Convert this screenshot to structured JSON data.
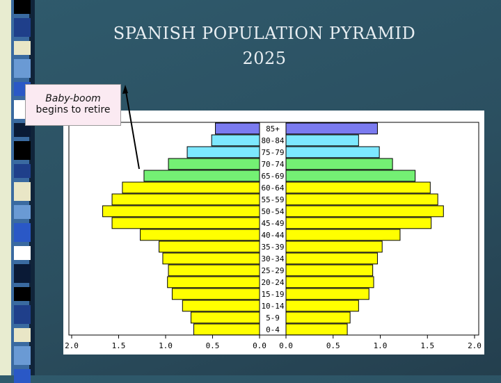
{
  "slide": {
    "title_line1": "SPANISH POPULATION PYRAMID",
    "title_line2": "2025",
    "callout_line1": "Baby-boom",
    "callout_line2": "begins to retire"
  },
  "colors": {
    "old_age": "#7b7bf0",
    "senior": "#7de8ff",
    "pre_retire": "#74f074",
    "working_age": "#ffff00",
    "outline": "#000000"
  },
  "chart_data": {
    "type": "bar",
    "orientation": "horizontal-pyramid",
    "categories": [
      "85+",
      "80-84",
      "75-79",
      "70-74",
      "65-69",
      "60-64",
      "55-59",
      "50-54",
      "45-49",
      "40-44",
      "35-39",
      "30-34",
      "25-29",
      "20-24",
      "15-19",
      "10-14",
      "5-9",
      "0-4"
    ],
    "series": [
      {
        "side": "left",
        "values": [
          0.47,
          0.51,
          0.77,
          0.97,
          1.23,
          1.46,
          1.57,
          1.67,
          1.57,
          1.27,
          1.07,
          1.03,
          0.97,
          0.98,
          0.93,
          0.82,
          0.73,
          0.7
        ]
      },
      {
        "side": "right",
        "values": [
          0.97,
          0.77,
          0.99,
          1.13,
          1.37,
          1.53,
          1.61,
          1.67,
          1.54,
          1.21,
          1.02,
          0.97,
          0.92,
          0.93,
          0.88,
          0.77,
          0.68,
          0.65
        ]
      }
    ],
    "bar_color_groups": [
      "old_age",
      "senior",
      "senior",
      "pre_retire",
      "pre_retire",
      "working_age",
      "working_age",
      "working_age",
      "working_age",
      "working_age",
      "working_age",
      "working_age",
      "working_age",
      "working_age",
      "working_age",
      "working_age",
      "working_age",
      "working_age"
    ],
    "xlim": [
      0,
      2.0
    ],
    "left_ticks": [
      "2.0",
      "1.5",
      "1.0",
      "0.5",
      "0.0"
    ],
    "right_ticks": [
      "0.0",
      "0.5",
      "1.0",
      "1.5",
      "2.0"
    ],
    "grid": false,
    "annotation": "Baby-boom begins to retire"
  }
}
